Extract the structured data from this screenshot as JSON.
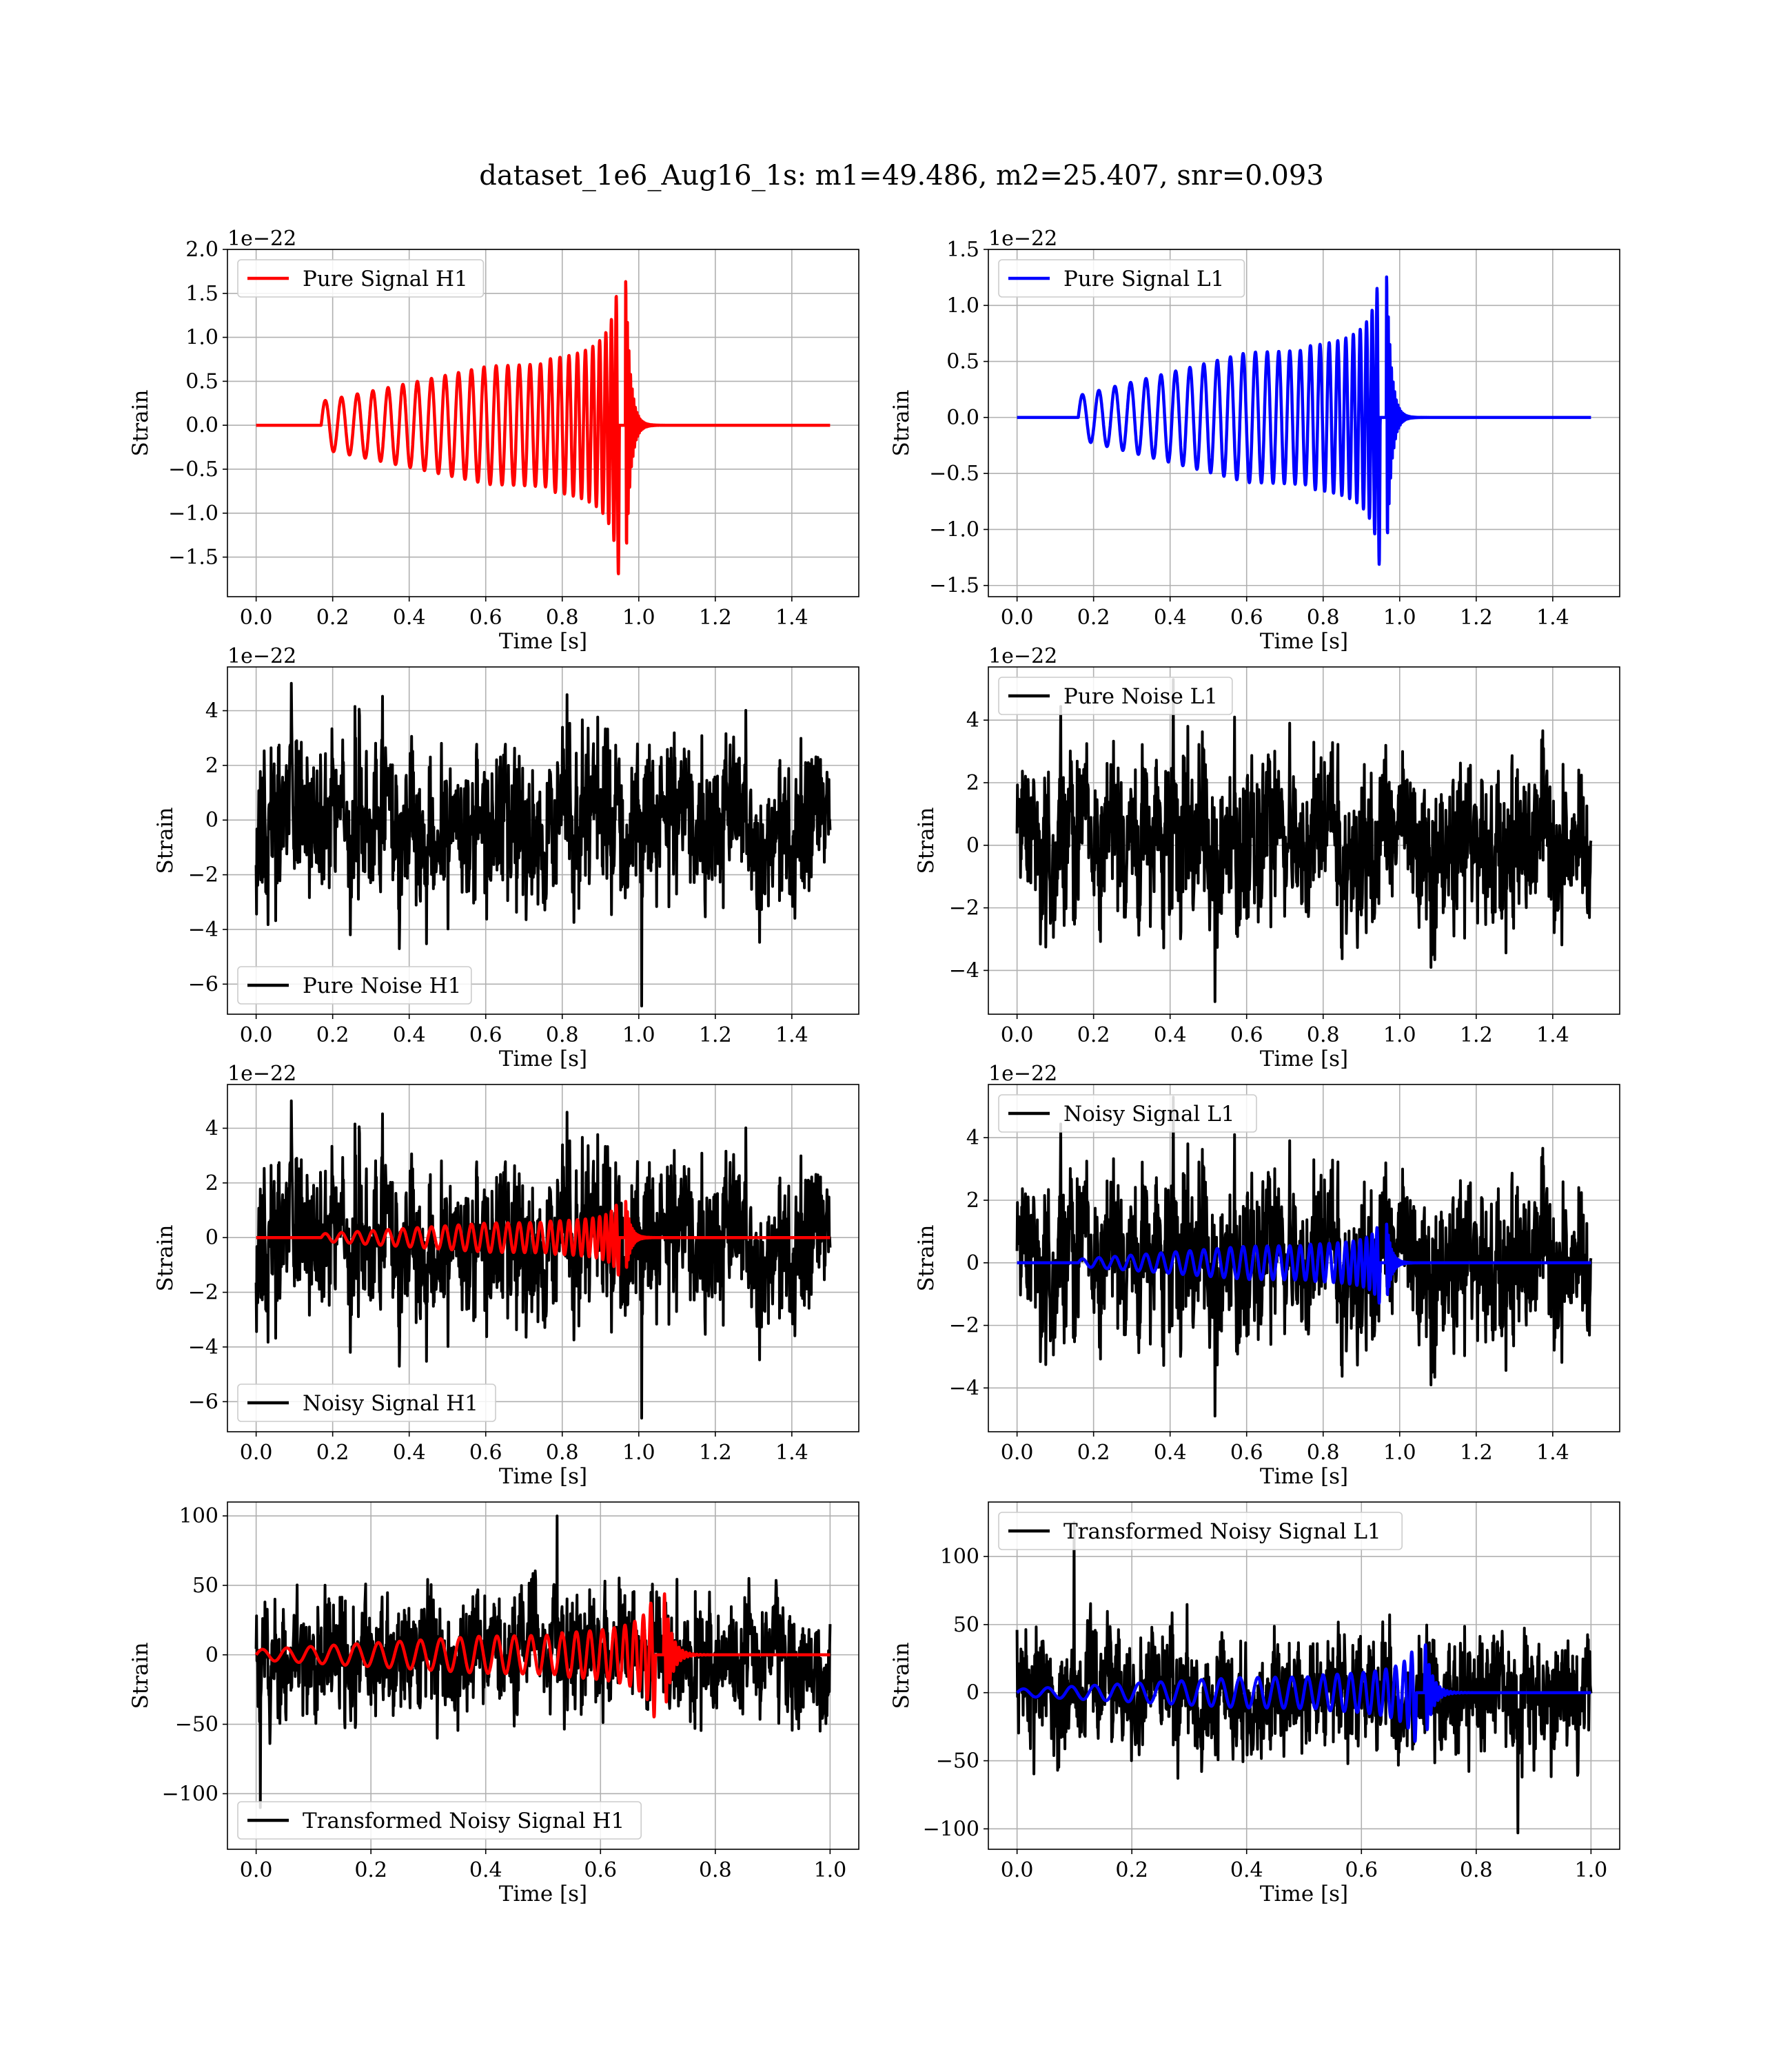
{
  "figure": {
    "title": "dataset_1e6_Aug16_1s: m1=49.486, m2=25.407, snr=0.093",
    "colors": {
      "h1_signal": "#ff0000",
      "l1_signal": "#0000ff",
      "noise": "#000000",
      "grid": "#b0b0b0",
      "legend_border": "#cccccc"
    }
  },
  "chart_data": [
    {
      "id": "pure-signal-h1",
      "type": "line",
      "title": "",
      "xlabel": "Time [s]",
      "ylabel": "Strain",
      "offset_text": "1e−22",
      "xlim": [
        -0.075,
        1.575
      ],
      "ylim": [
        -1.95,
        2.0
      ],
      "xticks": [
        0.0,
        0.2,
        0.4,
        0.6,
        0.8,
        1.0,
        1.2,
        1.4
      ],
      "xtick_labels": [
        "0.0",
        "0.2",
        "0.4",
        "0.6",
        "0.8",
        "1.0",
        "1.2",
        "1.4"
      ],
      "yticks": [
        -1.5,
        -1.0,
        -0.5,
        0.0,
        0.5,
        1.0,
        1.5,
        2.0
      ],
      "ytick_labels": [
        "−1.5",
        "−1.0",
        "−0.5",
        "0.0",
        "0.5",
        "1.0",
        "1.5",
        "2.0"
      ],
      "grid": true,
      "legend": "upper left",
      "series": [
        {
          "name": "Pure Signal H1",
          "kind": "chirp",
          "color": "#ff0000",
          "in_legend": true,
          "x_start": 0.0,
          "x_end": 1.5,
          "t_on": 0.17,
          "t_merge": 0.965,
          "amp_start": 0.25,
          "amp_mid": 0.63,
          "amp_peak": 1.85,
          "cycles": 27,
          "ringdown": 0.012
        }
      ]
    },
    {
      "id": "pure-signal-l1",
      "type": "line",
      "title": "",
      "xlabel": "Time [s]",
      "ylabel": "Strain",
      "offset_text": "1e−22",
      "xlim": [
        -0.075,
        1.575
      ],
      "ylim": [
        -1.6,
        1.5
      ],
      "xticks": [
        0.0,
        0.2,
        0.4,
        0.6,
        0.8,
        1.0,
        1.2,
        1.4
      ],
      "xtick_labels": [
        "0.0",
        "0.2",
        "0.4",
        "0.6",
        "0.8",
        "1.0",
        "1.2",
        "1.4"
      ],
      "yticks": [
        -1.5,
        -1.0,
        -0.5,
        0.0,
        0.5,
        1.0,
        1.5
      ],
      "ytick_labels": [
        "−1.5",
        "−1.0",
        "−0.5",
        "0.0",
        "0.5",
        "1.0",
        "1.5"
      ],
      "grid": true,
      "legend": "upper left",
      "series": [
        {
          "name": "Pure Signal L1",
          "kind": "chirp",
          "color": "#0000ff",
          "in_legend": true,
          "x_start": 0.0,
          "x_end": 1.5,
          "t_on": 0.16,
          "t_merge": 0.965,
          "amp_start": 0.18,
          "amp_mid": 0.55,
          "amp_peak": 1.42,
          "cycles": 27,
          "ringdown": 0.012
        }
      ]
    },
    {
      "id": "pure-noise-h1",
      "type": "line",
      "title": "",
      "xlabel": "Time [s]",
      "ylabel": "Strain",
      "offset_text": "1e−22",
      "xlim": [
        -0.075,
        1.575
      ],
      "ylim": [
        -7.1,
        5.6
      ],
      "xticks": [
        0.0,
        0.2,
        0.4,
        0.6,
        0.8,
        1.0,
        1.2,
        1.4
      ],
      "xtick_labels": [
        "0.0",
        "0.2",
        "0.4",
        "0.6",
        "0.8",
        "1.0",
        "1.2",
        "1.4"
      ],
      "yticks": [
        -6,
        -4,
        -2,
        0,
        2,
        4
      ],
      "ytick_labels": [
        "−6",
        "−4",
        "−2",
        "0",
        "2",
        "4"
      ],
      "grid": true,
      "legend": "lower left",
      "series": [
        {
          "name": "Pure Noise H1",
          "kind": "noise",
          "color": "#000000",
          "in_legend": true,
          "x_start": 0.0,
          "x_end": 1.5,
          "n_points": 1500,
          "typical_max": 2.9,
          "typical_min": -3.2,
          "max": 5.0,
          "min": -6.8,
          "seed": 11
        }
      ]
    },
    {
      "id": "pure-noise-l1",
      "type": "line",
      "title": "",
      "xlabel": "Time [s]",
      "ylabel": "Strain",
      "offset_text": "1e−22",
      "xlim": [
        -0.075,
        1.575
      ],
      "ylim": [
        -5.4,
        5.7
      ],
      "xticks": [
        0.0,
        0.2,
        0.4,
        0.6,
        0.8,
        1.0,
        1.2,
        1.4
      ],
      "xtick_labels": [
        "0.0",
        "0.2",
        "0.4",
        "0.6",
        "0.8",
        "1.0",
        "1.2",
        "1.4"
      ],
      "yticks": [
        -4,
        -2,
        0,
        2,
        4
      ],
      "ytick_labels": [
        "−4",
        "−2",
        "0",
        "2",
        "4"
      ],
      "grid": true,
      "legend": "upper left",
      "series": [
        {
          "name": "Pure Noise L1",
          "kind": "noise",
          "color": "#000000",
          "in_legend": true,
          "x_start": 0.0,
          "x_end": 1.5,
          "n_points": 1500,
          "typical_max": 2.8,
          "typical_min": -2.9,
          "max": 5.3,
          "min": -5.0,
          "seed": 23
        }
      ]
    },
    {
      "id": "noisy-signal-h1",
      "type": "line",
      "title": "",
      "xlabel": "Time [s]",
      "ylabel": "Strain",
      "offset_text": "1e−22",
      "xlim": [
        -0.075,
        1.575
      ],
      "ylim": [
        -7.1,
        5.6
      ],
      "xticks": [
        0.0,
        0.2,
        0.4,
        0.6,
        0.8,
        1.0,
        1.2,
        1.4
      ],
      "xtick_labels": [
        "0.0",
        "0.2",
        "0.4",
        "0.6",
        "0.8",
        "1.0",
        "1.2",
        "1.4"
      ],
      "yticks": [
        -6,
        -4,
        -2,
        0,
        2,
        4
      ],
      "ytick_labels": [
        "−6",
        "−4",
        "−2",
        "0",
        "2",
        "4"
      ],
      "grid": true,
      "legend": "lower left",
      "series": [
        {
          "name": "Noisy Signal H1",
          "kind": "noise",
          "color": "#000000",
          "in_legend": true,
          "x_start": 0.0,
          "x_end": 1.5,
          "n_points": 1500,
          "typical_max": 2.9,
          "typical_min": -3.2,
          "max": 5.0,
          "min": -6.6,
          "seed": 11
        },
        {
          "name": "",
          "kind": "chirp",
          "color": "#ff0000",
          "in_legend": false,
          "x_start": 0.0,
          "x_end": 1.5,
          "t_on": 0.17,
          "t_merge": 0.965,
          "amp_start": 0.12,
          "amp_mid": 0.5,
          "amp_peak": 1.5,
          "cycles": 27,
          "ringdown": 0.012
        }
      ]
    },
    {
      "id": "noisy-signal-l1",
      "type": "line",
      "title": "",
      "xlabel": "Time [s]",
      "ylabel": "Strain",
      "offset_text": "1e−22",
      "xlim": [
        -0.075,
        1.575
      ],
      "ylim": [
        -5.4,
        5.7
      ],
      "xticks": [
        0.0,
        0.2,
        0.4,
        0.6,
        0.8,
        1.0,
        1.2,
        1.4
      ],
      "xtick_labels": [
        "0.0",
        "0.2",
        "0.4",
        "0.6",
        "0.8",
        "1.0",
        "1.2",
        "1.4"
      ],
      "yticks": [
        -4,
        -2,
        0,
        2,
        4
      ],
      "ytick_labels": [
        "−4",
        "−2",
        "0",
        "2",
        "4"
      ],
      "grid": true,
      "legend": "upper left",
      "series": [
        {
          "name": "Noisy Signal L1",
          "kind": "noise",
          "color": "#000000",
          "in_legend": true,
          "x_start": 0.0,
          "x_end": 1.5,
          "n_points": 1500,
          "typical_max": 2.8,
          "typical_min": -2.9,
          "max": 5.3,
          "min": -4.9,
          "seed": 23
        },
        {
          "name": "",
          "kind": "chirp",
          "color": "#0000ff",
          "in_legend": false,
          "x_start": 0.0,
          "x_end": 1.5,
          "t_on": 0.16,
          "t_merge": 0.965,
          "amp_start": 0.1,
          "amp_mid": 0.5,
          "amp_peak": 1.4,
          "cycles": 27,
          "ringdown": 0.012
        }
      ]
    },
    {
      "id": "transformed-noisy-signal-h1",
      "type": "line",
      "title": "",
      "xlabel": "Time [s]",
      "ylabel": "Strain",
      "offset_text": "",
      "xlim": [
        -0.05,
        1.05
      ],
      "ylim": [
        -140,
        110
      ],
      "xticks": [
        0.0,
        0.2,
        0.4,
        0.6,
        0.8,
        1.0
      ],
      "xtick_labels": [
        "0.0",
        "0.2",
        "0.4",
        "0.6",
        "0.8",
        "1.0"
      ],
      "yticks": [
        -100,
        -50,
        0,
        50,
        100
      ],
      "ytick_labels": [
        "−100",
        "−50",
        "0",
        "50",
        "100"
      ],
      "grid": true,
      "legend": "lower left",
      "series": [
        {
          "name": "Transformed Noisy Signal H1",
          "kind": "noise",
          "color": "#000000",
          "in_legend": true,
          "x_start": 0.0,
          "x_end": 1.0,
          "n_points": 1500,
          "typical_max": 45,
          "typical_min": -45,
          "max": 100,
          "min": -110,
          "seed": 37
        },
        {
          "name": "",
          "kind": "chirp",
          "color": "#ff0000",
          "in_legend": false,
          "x_start": 0.0,
          "x_end": 1.0,
          "t_on": 0.0,
          "t_merge": 0.71,
          "amp_start": 3,
          "amp_mid": 12,
          "amp_peak": 50,
          "cycles": 24,
          "ringdown": 0.012
        }
      ]
    },
    {
      "id": "transformed-noisy-signal-l1",
      "type": "line",
      "title": "",
      "xlabel": "Time [s]",
      "ylabel": "Strain",
      "offset_text": "",
      "xlim": [
        -0.05,
        1.05
      ],
      "ylim": [
        -115,
        140
      ],
      "xticks": [
        0.0,
        0.2,
        0.4,
        0.6,
        0.8,
        1.0
      ],
      "xtick_labels": [
        "0.0",
        "0.2",
        "0.4",
        "0.6",
        "0.8",
        "1.0"
      ],
      "yticks": [
        -100,
        -50,
        0,
        50,
        100
      ],
      "ytick_labels": [
        "−100",
        "−50",
        "0",
        "50",
        "100"
      ],
      "grid": true,
      "legend": "upper left",
      "series": [
        {
          "name": "Transformed Noisy Signal L1",
          "kind": "noise",
          "color": "#000000",
          "in_legend": true,
          "x_start": 0.0,
          "x_end": 1.0,
          "n_points": 1500,
          "typical_max": 45,
          "typical_min": -45,
          "max": 125,
          "min": -103,
          "seed": 53
        },
        {
          "name": "",
          "kind": "chirp",
          "color": "#0000ff",
          "in_legend": false,
          "x_start": 0.0,
          "x_end": 1.0,
          "t_on": 0.0,
          "t_merge": 0.71,
          "amp_start": 2,
          "amp_mid": 10,
          "amp_peak": 40,
          "cycles": 24,
          "ringdown": 0.012
        }
      ]
    }
  ]
}
